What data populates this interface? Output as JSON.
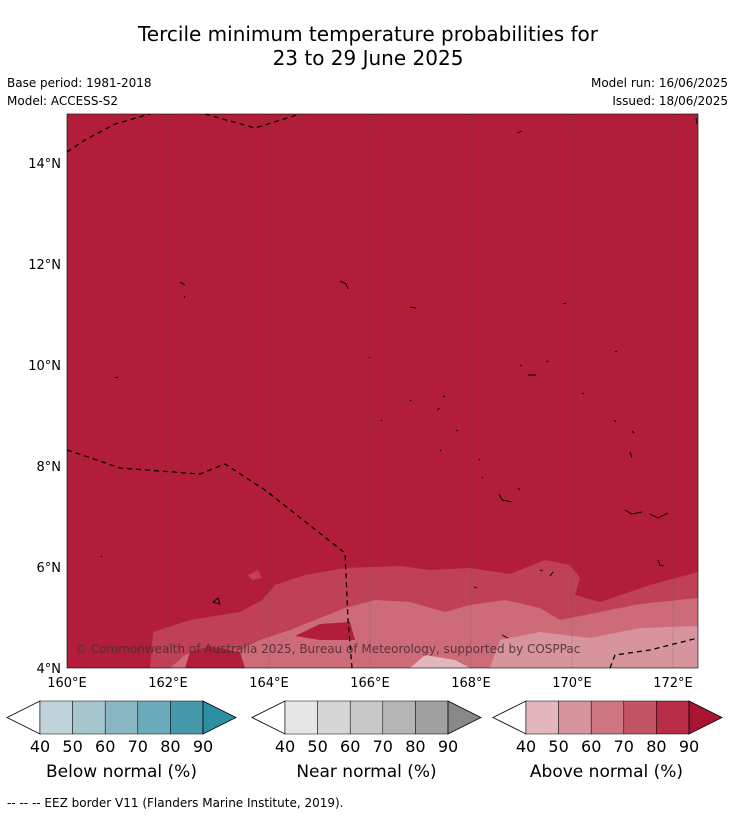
{
  "title_line1": "Tercile minimum temperature probabilities for",
  "title_line2": "23 to 29 June 2025",
  "base_period": "Base period: 1981-2018",
  "model": "Model: ACCESS-S2",
  "model_run": "Model run: 16/06/2025",
  "issued": "Issued: 18/06/2025",
  "copyright": "© Commonwealth of Australia 2025, Bureau of Meteorology, supported by COSPPac",
  "map": {
    "lat_ticks": [
      "14°N",
      "12°N",
      "10°N",
      "8°N",
      "6°N",
      "4°N"
    ],
    "lon_ticks": [
      "160°E",
      "162°E",
      "164°E",
      "166°E",
      "168°E",
      "170°E",
      "172°E"
    ],
    "colors": {
      "above_90": "#b21e39",
      "above_80": "#c04055",
      "above_70": "#cd6b79",
      "ocean_dark": "#b21e39"
    }
  },
  "colorbars": [
    {
      "label": "Below normal (%)",
      "ticks": [
        "40",
        "50",
        "60",
        "70",
        "80",
        "90"
      ],
      "colors": [
        "#bfd4da",
        "#a5c6cc",
        "#88b6c2",
        "#6aabba",
        "#4599ab",
        "#2c8ea3"
      ]
    },
    {
      "label": "Near normal (%)",
      "ticks": [
        "40",
        "50",
        "60",
        "70",
        "80",
        "90"
      ],
      "colors": [
        "#e6e6e6",
        "#d6d6d6",
        "#c8c8c8",
        "#b5b5b5",
        "#a0a0a0",
        "#888888"
      ]
    },
    {
      "label": "Above normal (%)",
      "ticks": [
        "40",
        "50",
        "60",
        "70",
        "80",
        "90"
      ],
      "colors": [
        "#e3b6bd",
        "#d7949d",
        "#cd7580",
        "#c25463",
        "#b82d45",
        "#a81533"
      ]
    }
  ],
  "footer": "--  --  -- EEZ border V11 (Flanders Marine Institute, 2019)."
}
